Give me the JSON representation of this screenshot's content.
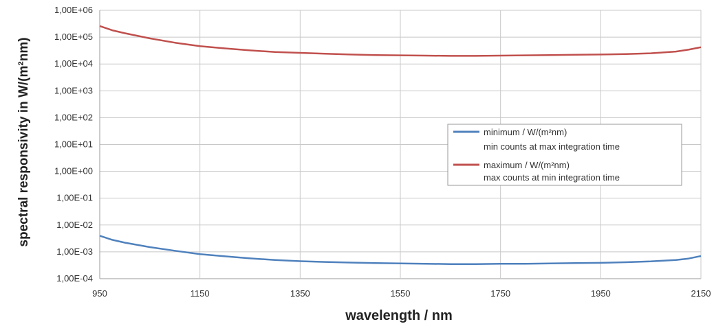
{
  "chart_data": {
    "type": "line",
    "xlabel": "wavelength / nm",
    "ylabel": "spectral responsivity in W/(m²nm)",
    "xlim": [
      950,
      2150
    ],
    "ylim": [
      0.0001,
      1000000
    ],
    "y_scale": "log",
    "grid": true,
    "legend_position": "right",
    "x_ticks": [
      950,
      1150,
      1350,
      1550,
      1750,
      1950,
      2150
    ],
    "x_tick_labels": [
      "950",
      "1150",
      "1350",
      "1550",
      "1750",
      "1950",
      "2150"
    ],
    "y_tick_labels": [
      "1,00E+06",
      "1,00E+05",
      "1,00E+04",
      "1,00E+03",
      "1,00E+02",
      "1,00E+01",
      "1,00E+00",
      "1,00E-01",
      "1,00E-02",
      "1,00E-03",
      "1,00E-04"
    ],
    "series": [
      {
        "name": "minimum / W/(m²nm)",
        "description": "min counts at max integration time",
        "color": "#4f81bd",
        "x": [
          950,
          975,
          1000,
          1050,
          1100,
          1150,
          1200,
          1250,
          1300,
          1350,
          1400,
          1450,
          1500,
          1550,
          1600,
          1650,
          1700,
          1750,
          1800,
          1850,
          1900,
          1950,
          2000,
          2050,
          2100,
          2125,
          2150
        ],
        "y": [
          0.004,
          0.0028,
          0.0022,
          0.0015,
          0.0011,
          0.00082,
          0.00068,
          0.00057,
          0.0005,
          0.00045,
          0.00042,
          0.0004,
          0.00038,
          0.00037,
          0.00036,
          0.00035,
          0.00035,
          0.00036,
          0.00036,
          0.00037,
          0.00038,
          0.00039,
          0.00041,
          0.00044,
          0.0005,
          0.00056,
          0.0007
        ]
      },
      {
        "name": "maximum / W/(m²nm)",
        "description": "max counts at min integration time",
        "color": "#c0504d",
        "x": [
          950,
          975,
          1000,
          1050,
          1100,
          1150,
          1200,
          1250,
          1300,
          1350,
          1400,
          1450,
          1500,
          1550,
          1600,
          1650,
          1700,
          1750,
          1800,
          1850,
          1900,
          1950,
          2000,
          2050,
          2100,
          2125,
          2150
        ],
        "y": [
          260000,
          180000,
          140000,
          90000,
          62000,
          46000,
          38000,
          32000,
          28000,
          26000,
          24000,
          22500,
          21500,
          21000,
          20500,
          20000,
          20000,
          20500,
          21000,
          21500,
          22000,
          22500,
          23500,
          25000,
          29000,
          34000,
          42000
        ]
      }
    ]
  }
}
